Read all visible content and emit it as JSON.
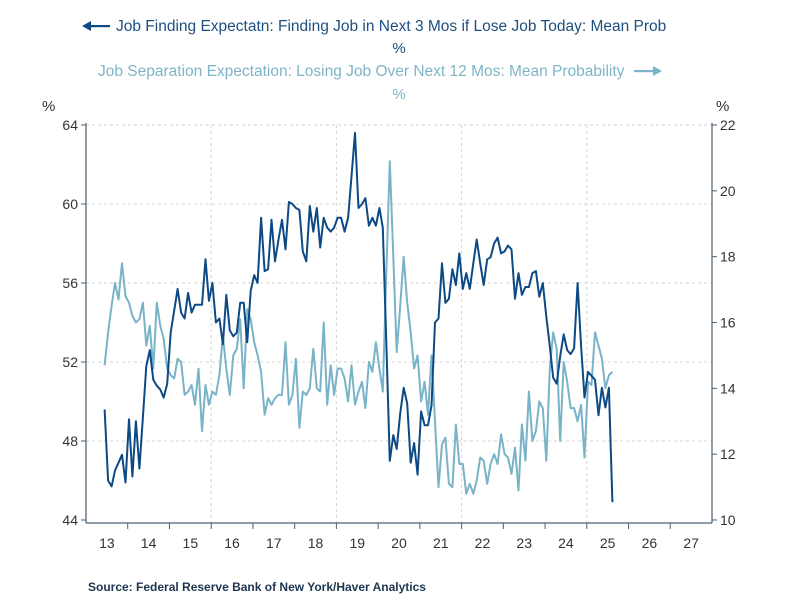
{
  "chart_data": {
    "type": "line",
    "frequency": "monthly",
    "start": "2013-06",
    "x_axis": {
      "range": [
        2013,
        2028
      ],
      "tick_labels": [
        "13",
        "14",
        "15",
        "16",
        "17",
        "18",
        "19",
        "20",
        "21",
        "22",
        "23",
        "24",
        "25",
        "26",
        "27"
      ]
    },
    "left_axis": {
      "unit": "%",
      "range": [
        44,
        64
      ],
      "ticks": [
        "44",
        "48",
        "52",
        "56",
        "60",
        "64"
      ]
    },
    "right_axis": {
      "unit": "%",
      "range": [
        10,
        22
      ],
      "ticks": [
        "10",
        "12",
        "14",
        "16",
        "18",
        "20",
        "22"
      ]
    },
    "grid": true,
    "series": [
      {
        "name": "Job Finding Expectatn: Finding Job in Next 3 Mos if Lose Job Today: Mean Prob",
        "unit": "%",
        "axis": "left",
        "color": "#0d4a85",
        "values": [
          49.6,
          46.0,
          45.7,
          46.5,
          46.9,
          47.3,
          45.9,
          49.1,
          46.2,
          49.0,
          46.6,
          49.2,
          51.8,
          52.6,
          51.1,
          50.8,
          50.6,
          50.2,
          50.9,
          53.5,
          54.6,
          55.7,
          54.5,
          54.2,
          55.5,
          54.5,
          54.9,
          54.9,
          54.9,
          57.2,
          55.1,
          56.0,
          54.0,
          54.2,
          52.9,
          55.4,
          53.6,
          53.3,
          53.5,
          55.0,
          55.0,
          53.0,
          55.6,
          56.4,
          56.0,
          59.3,
          56.6,
          56.7,
          59.2,
          57.1,
          58.2,
          59.2,
          57.7,
          60.1,
          60.0,
          59.8,
          59.7,
          57.6,
          57.1,
          59.9,
          58.6,
          59.8,
          57.8,
          59.3,
          58.8,
          58.6,
          58.8,
          59.3,
          59.3,
          58.6,
          59.3,
          61.4,
          63.6,
          59.8,
          60.0,
          60.3,
          58.9,
          59.3,
          58.9,
          59.8,
          58.8,
          53.0,
          47.0,
          48.3,
          47.6,
          49.4,
          50.7,
          49.9,
          46.9,
          47.9,
          46.3,
          49.5,
          48.8,
          48.8,
          49.8,
          54.0,
          54.2,
          57.0,
          55.0,
          55.2,
          56.7,
          55.9,
          57.5,
          55.7,
          56.5,
          55.7,
          57.0,
          58.2,
          57.0,
          55.9,
          57.2,
          57.3,
          58.0,
          58.3,
          57.5,
          57.6,
          57.9,
          57.7,
          55.2,
          56.5,
          55.4,
          55.8,
          55.8,
          56.5,
          56.6,
          55.3,
          56.0,
          54.3,
          52.8,
          51.2,
          50.9,
          52.3,
          53.4,
          52.6,
          52.4,
          52.7,
          56.0,
          52.8,
          50.2,
          51.5,
          51.3,
          51.1,
          49.3,
          50.7,
          49.7,
          50.7,
          44.9
        ]
      },
      {
        "name": "Job Separation Expectation: Losing Job Over Next 12 Mos: Mean Probability",
        "unit": "%",
        "axis": "right",
        "color": "#79b3c8",
        "values": [
          14.7,
          15.7,
          16.5,
          17.2,
          16.7,
          17.8,
          16.8,
          16.6,
          16.2,
          16.0,
          16.1,
          16.6,
          15.3,
          15.9,
          14.6,
          16.6,
          15.9,
          15.5,
          14.6,
          14.4,
          14.3,
          14.9,
          14.8,
          13.8,
          13.9,
          14.1,
          13.5,
          14.6,
          12.7,
          14.1,
          13.5,
          13.9,
          13.8,
          14.4,
          15.6,
          14.6,
          13.8,
          15.0,
          15.2,
          16.1,
          14.0,
          16.4,
          16.1,
          15.4,
          15.0,
          14.5,
          13.2,
          13.7,
          13.5,
          13.7,
          13.8,
          13.8,
          15.4,
          13.5,
          13.8,
          14.9,
          12.8,
          13.9,
          13.8,
          14.0,
          15.2,
          14.0,
          13.9,
          16.0,
          13.5,
          14.7,
          13.8,
          14.6,
          14.6,
          14.3,
          13.6,
          14.7,
          13.5,
          13.9,
          14.2,
          13.4,
          14.8,
          14.5,
          15.4,
          14.6,
          13.9,
          17.5,
          20.9,
          18.0,
          15.1,
          16.5,
          18.0,
          16.6,
          15.7,
          14.6,
          15.0,
          13.6,
          14.2,
          13.2,
          15.0,
          13.0,
          11.0,
          12.3,
          12.5,
          11.1,
          11.0,
          12.9,
          11.7,
          11.7,
          10.8,
          11.1,
          10.8,
          11.2,
          11.9,
          11.8,
          11.1,
          11.7,
          12.0,
          11.7,
          12.6,
          12.0,
          11.9,
          11.4,
          12.2,
          10.9,
          12.9,
          11.8,
          13.9,
          12.4,
          12.7,
          13.6,
          13.4,
          11.8,
          14.6,
          15.7,
          15.2,
          12.4,
          14.8,
          14.2,
          13.4,
          13.4,
          13.0,
          13.5,
          11.9,
          14.2,
          14.1,
          15.7,
          15.3,
          14.9,
          14.0,
          14.4,
          14.5
        ]
      }
    ],
    "legend": [
      {
        "label": "Job Finding Expectatn: Finding Job in Next 3 Mos if Lose Job Today: Mean Prob",
        "unit": "%",
        "arrow": "left"
      },
      {
        "label": "Job Separation Expectation: Losing Job Over Next 12 Mos: Mean Probability",
        "unit": "%",
        "arrow": "right"
      }
    ],
    "source": "Source:  Federal Reserve Bank of New York/Haver Analytics"
  }
}
